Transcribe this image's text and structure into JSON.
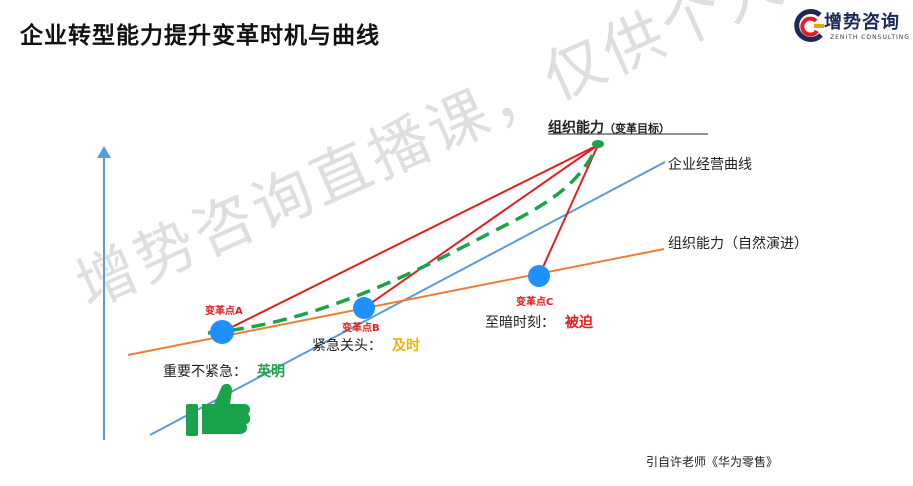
{
  "title": "企业转型能力提升变革时机与曲线",
  "logo": {
    "name": "增势咨询",
    "subtitle": "ZENITH CONSULTING"
  },
  "lines": {
    "business": "企业经营曲线",
    "org_natural": "组织能力（自然演进）",
    "org_target_main": "组织能力",
    "org_target_sub": "（变革目标）"
  },
  "points": {
    "a": "变革点A",
    "b": "变革点B",
    "c": "变革点C"
  },
  "states": {
    "a_label": "重要不紧急：",
    "a_value": "英明",
    "b_label": "紧急关头：",
    "b_value": "及时",
    "c_label": "至暗时刻：",
    "c_value": "被迫"
  },
  "colors": {
    "business_line": "#5b9bd5",
    "natural_line": "#ed7d31",
    "target_curve": "#1aa34a",
    "arrows": "#e02020",
    "points": "#1e90ff",
    "value_a": "#1aa34a",
    "value_b": "#f0b400",
    "value_c": "#e02020"
  },
  "source": "引自许老师《华为零售》",
  "watermark": "增势咨询直播课，仅供个人学习参考"
}
